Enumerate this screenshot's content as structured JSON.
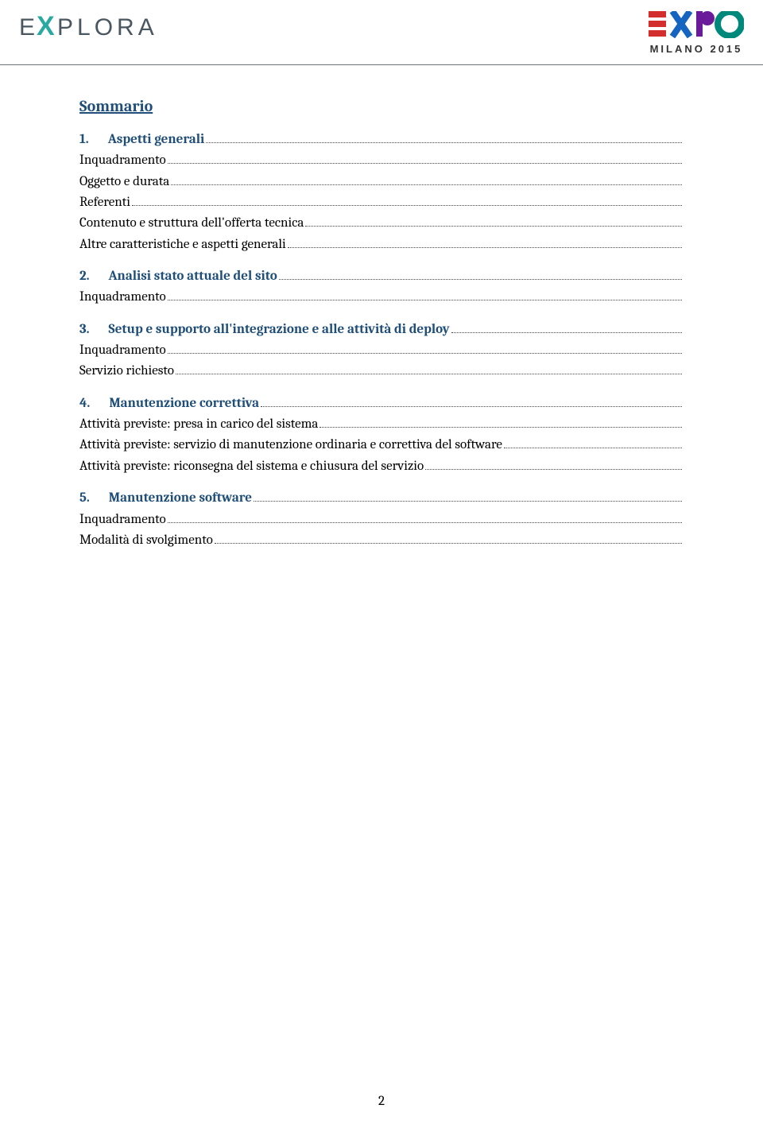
{
  "logos": {
    "explora_text": "EXPLORA",
    "expo_sub": "MILANO 2015"
  },
  "title": "Sommario",
  "colors": {
    "heading": "#1f4e79",
    "body": "#000000",
    "rule": "#6b757e"
  },
  "page_number": "2",
  "sections": [
    {
      "num": "1.",
      "title": "Aspetti generali",
      "items": [
        "Inquadramento",
        "Oggetto e durata",
        "Referenti",
        "Contenuto e struttura dell'offerta tecnica",
        "Altre caratteristiche e aspetti generali"
      ]
    },
    {
      "num": "2.",
      "title": "Analisi stato attuale del sito",
      "items": [
        "Inquadramento"
      ]
    },
    {
      "num": "3.",
      "title": "Setup e supporto all'integrazione e alle attività di deploy",
      "items": [
        "Inquadramento",
        "Servizio richiesto"
      ]
    },
    {
      "num": "4.",
      "title": "Manutenzione correttiva",
      "items": [
        "Attività previste: presa in carico del sistema",
        "Attività previste: servizio di manutenzione ordinaria e correttiva del software",
        "Attività previste: riconsegna del sistema e chiusura del servizio"
      ]
    },
    {
      "num": "5.",
      "title": "Manutenzione software",
      "items": [
        "Inquadramento",
        "Modalità di svolgimento"
      ]
    }
  ]
}
